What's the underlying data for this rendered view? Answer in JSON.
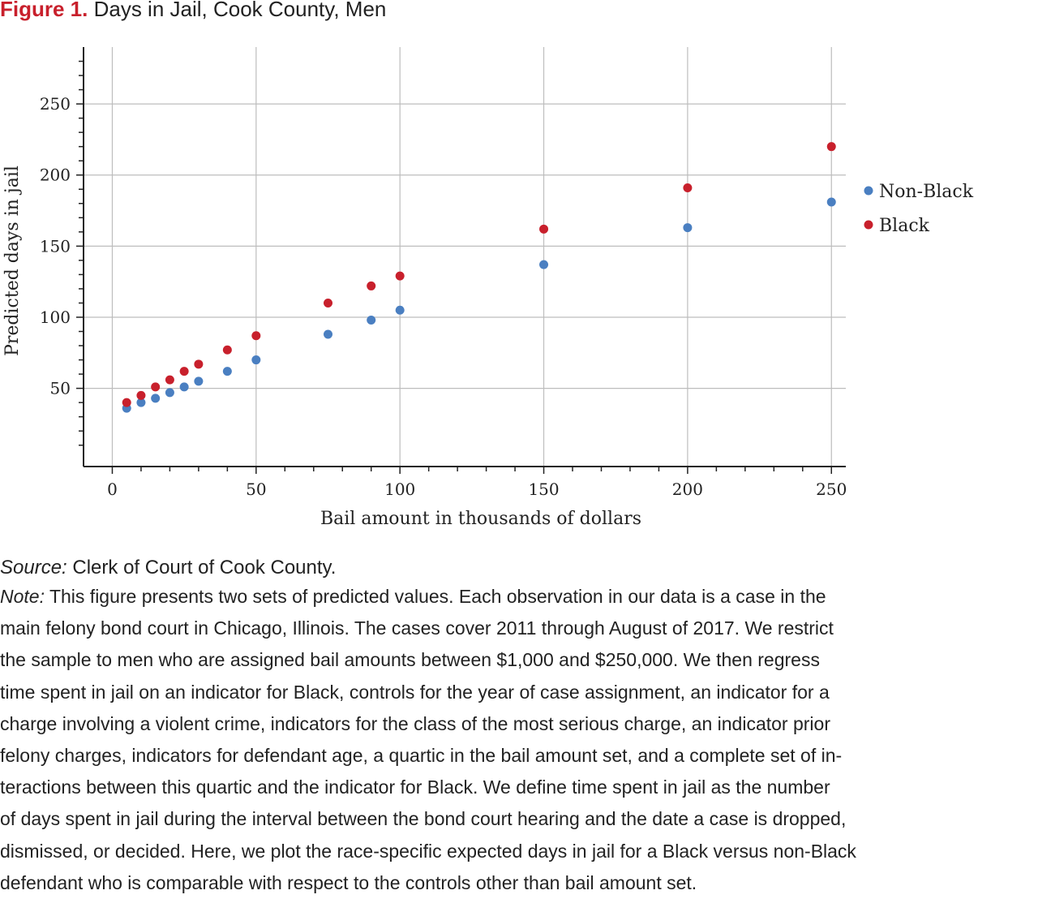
{
  "figure": {
    "label": "Figure 1.",
    "title": "Days in Jail, Cook County, Men"
  },
  "colors": {
    "non_black": "#4a7fc1",
    "black": "#c8202c",
    "grid": "#bdbdbd",
    "axis": "#222222"
  },
  "chart_data": {
    "type": "scatter",
    "title": "Days in Jail, Cook County, Men",
    "xlabel": "Bail amount in thousands of dollars",
    "ylabel": "Predicted days in jail",
    "xlim": [
      -10,
      255
    ],
    "ylim": [
      -5,
      290
    ],
    "xticks": [
      0,
      50,
      100,
      150,
      200,
      250
    ],
    "yticks": [
      50,
      100,
      150,
      200,
      250
    ],
    "grid": true,
    "legend_position": "right",
    "series": [
      {
        "name": "Non-Black",
        "color": "#4a7fc1",
        "x": [
          5,
          10,
          15,
          20,
          25,
          30,
          40,
          50,
          75,
          90,
          100,
          150,
          200,
          250
        ],
        "y": [
          36,
          40,
          43,
          47,
          51,
          55,
          62,
          70,
          88,
          98,
          105,
          137,
          163,
          181
        ]
      },
      {
        "name": "Black",
        "color": "#c8202c",
        "x": [
          5,
          10,
          15,
          20,
          25,
          30,
          40,
          50,
          75,
          90,
          100,
          150,
          200,
          250
        ],
        "y": [
          40,
          45,
          51,
          56,
          62,
          67,
          77,
          87,
          110,
          122,
          129,
          162,
          191,
          220
        ]
      }
    ]
  },
  "source": {
    "label": "Source:",
    "text": "Clerk of Court of Cook County."
  },
  "note": {
    "label": "Note:",
    "lines": [
      "This figure presents two sets of predicted values. Each observation in our data is a case in the",
      "main felony bond court in Chicago, Illinois. The cases cover 2011 through August of 2017. We restrict",
      "the sample to men who are assigned bail amounts between $1,000 and $250,000. We then regress",
      "time spent in jail on an indicator for Black, controls for the year of case assignment, an indicator for a",
      "charge involving a violent crime, indicators for the class of the most serious charge, an indicator prior",
      "felony charges, indicators for defendant age, a quartic in the bail amount set, and a complete set of in-",
      "teractions between this quartic and the indicator for Black. We define time spent in jail as the number",
      "of days spent in jail during the interval between the bond court hearing and the date a case is dropped,",
      "dismissed, or decided. Here, we plot the race-specific expected days in jail for a Black versus non-Black",
      "defendant who is comparable with respect to the controls other than bail amount set."
    ]
  }
}
